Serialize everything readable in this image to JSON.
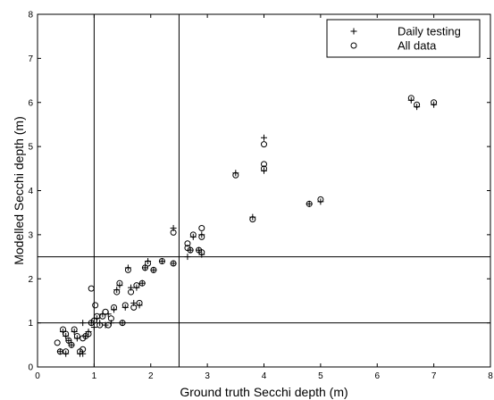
{
  "chart_data": {
    "type": "scatter",
    "title": "",
    "xlabel": "Ground truth Secchi depth (m)",
    "ylabel": "Modelled Secchi depth (m)",
    "xlim": [
      0,
      8
    ],
    "ylim": [
      0,
      8
    ],
    "xticks": [
      "0",
      "1",
      "2",
      "3",
      "4",
      "5",
      "6",
      "7",
      "8"
    ],
    "yticks": [
      "0",
      "1",
      "2",
      "3",
      "4",
      "5",
      "6",
      "7",
      "8"
    ],
    "grid": false,
    "legend_position": "top-right",
    "reference_lines": {
      "vertical": [
        1.0,
        2.5
      ],
      "horizontal": [
        1.0,
        2.5
      ]
    },
    "series": [
      {
        "name": "Daily testing",
        "marker": "plus",
        "points": [
          [
            0.4,
            0.35
          ],
          [
            0.45,
            0.8
          ],
          [
            0.5,
            0.7
          ],
          [
            0.5,
            0.3
          ],
          [
            0.55,
            0.6
          ],
          [
            0.6,
            0.5
          ],
          [
            0.65,
            0.8
          ],
          [
            0.7,
            0.65
          ],
          [
            0.75,
            0.3
          ],
          [
            0.8,
            1.0
          ],
          [
            0.8,
            0.3
          ],
          [
            0.85,
            0.7
          ],
          [
            0.9,
            0.8
          ],
          [
            0.95,
            1.0
          ],
          [
            1.0,
            0.9
          ],
          [
            1.05,
            1.1
          ],
          [
            1.1,
            1.0
          ],
          [
            1.15,
            1.2
          ],
          [
            1.2,
            0.95
          ],
          [
            1.25,
            1.2
          ],
          [
            1.3,
            1.0
          ],
          [
            1.35,
            1.3
          ],
          [
            1.4,
            1.75
          ],
          [
            1.45,
            1.85
          ],
          [
            1.5,
            1.0
          ],
          [
            1.55,
            1.35
          ],
          [
            1.6,
            2.25
          ],
          [
            1.65,
            1.8
          ],
          [
            1.7,
            1.45
          ],
          [
            1.75,
            1.8
          ],
          [
            1.8,
            1.4
          ],
          [
            1.85,
            1.9
          ],
          [
            1.9,
            2.25
          ],
          [
            1.95,
            2.4
          ],
          [
            2.05,
            2.2
          ],
          [
            2.2,
            2.4
          ],
          [
            2.4,
            2.35
          ],
          [
            2.4,
            3.15
          ],
          [
            2.65,
            2.5
          ],
          [
            2.7,
            2.65
          ],
          [
            2.75,
            2.95
          ],
          [
            2.85,
            2.65
          ],
          [
            2.9,
            2.55
          ],
          [
            2.9,
            3.0
          ],
          [
            3.5,
            4.4
          ],
          [
            3.8,
            3.4
          ],
          [
            4.0,
            4.45
          ],
          [
            4.0,
            5.2
          ],
          [
            4.8,
            3.7
          ],
          [
            5.0,
            3.75
          ],
          [
            6.6,
            6.05
          ],
          [
            6.7,
            5.9
          ],
          [
            7.0,
            5.95
          ]
        ]
      },
      {
        "name": "All data",
        "marker": "circle",
        "points": [
          [
            0.35,
            0.55
          ],
          [
            0.4,
            0.35
          ],
          [
            0.45,
            0.85
          ],
          [
            0.5,
            0.75
          ],
          [
            0.5,
            0.35
          ],
          [
            0.55,
            0.6
          ],
          [
            0.6,
            0.5
          ],
          [
            0.65,
            0.85
          ],
          [
            0.7,
            0.7
          ],
          [
            0.75,
            0.35
          ],
          [
            0.8,
            0.4
          ],
          [
            0.8,
            0.65
          ],
          [
            0.85,
            0.7
          ],
          [
            0.9,
            0.75
          ],
          [
            0.95,
            1.0
          ],
          [
            0.95,
            1.78
          ],
          [
            1.0,
            1.05
          ],
          [
            1.02,
            1.4
          ],
          [
            1.05,
            1.15
          ],
          [
            1.1,
            0.95
          ],
          [
            1.15,
            1.15
          ],
          [
            1.2,
            1.25
          ],
          [
            1.25,
            0.95
          ],
          [
            1.3,
            1.1
          ],
          [
            1.35,
            1.35
          ],
          [
            1.4,
            1.7
          ],
          [
            1.45,
            1.9
          ],
          [
            1.5,
            1.0
          ],
          [
            1.55,
            1.4
          ],
          [
            1.6,
            2.2
          ],
          [
            1.65,
            1.7
          ],
          [
            1.7,
            1.35
          ],
          [
            1.75,
            1.85
          ],
          [
            1.8,
            1.45
          ],
          [
            1.85,
            1.9
          ],
          [
            1.9,
            2.25
          ],
          [
            1.95,
            2.35
          ],
          [
            2.05,
            2.2
          ],
          [
            2.2,
            2.4
          ],
          [
            2.4,
            3.05
          ],
          [
            2.4,
            2.35
          ],
          [
            2.65,
            2.7
          ],
          [
            2.65,
            2.8
          ],
          [
            2.7,
            2.65
          ],
          [
            2.75,
            3.0
          ],
          [
            2.85,
            2.65
          ],
          [
            2.9,
            2.6
          ],
          [
            2.9,
            2.95
          ],
          [
            2.9,
            3.15
          ],
          [
            3.5,
            4.35
          ],
          [
            3.8,
            3.35
          ],
          [
            4.0,
            4.5
          ],
          [
            4.0,
            4.6
          ],
          [
            4.0,
            5.05
          ],
          [
            4.8,
            3.7
          ],
          [
            5.0,
            3.8
          ],
          [
            6.6,
            6.1
          ],
          [
            6.7,
            5.95
          ],
          [
            7.0,
            6.0
          ]
        ]
      }
    ]
  }
}
